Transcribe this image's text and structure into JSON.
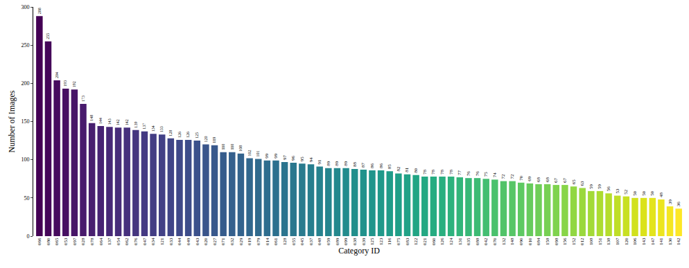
{
  "chart_data": {
    "type": "bar",
    "x_label": "Category ID",
    "y_label": "Number of Images",
    "categories": [
      "066",
      "080",
      "065",
      "053",
      "097",
      "028",
      "078",
      "064",
      "137",
      "054",
      "062",
      "076",
      "047",
      "034",
      "121",
      "033",
      "044",
      "049",
      "043",
      "020",
      "027",
      "071",
      "032",
      "029",
      "019",
      "079",
      "014",
      "061",
      "128",
      "055",
      "045",
      "037",
      "048",
      "059",
      "089",
      "099",
      "038",
      "039",
      "125",
      "123",
      "116",
      "075",
      "083",
      "122",
      "021",
      "060",
      "126",
      "124",
      "131",
      "035",
      "088",
      "042",
      "070",
      "132",
      "148",
      "090",
      "010",
      "084",
      "158",
      "098",
      "156",
      "152",
      "012",
      "108",
      "151",
      "138",
      "107",
      "120",
      "106",
      "143",
      "147",
      "141",
      "130",
      "142"
    ],
    "values": [
      288,
      255,
      204,
      193,
      192,
      173,
      148,
      144,
      143,
      142,
      142,
      139,
      137,
      134,
      133,
      128,
      126,
      126,
      125,
      120,
      119,
      110,
      110,
      108,
      102,
      101,
      99,
      99,
      97,
      96,
      95,
      94,
      91,
      89,
      89,
      89,
      88,
      87,
      86,
      86,
      85,
      82,
      81,
      80,
      78,
      78,
      78,
      78,
      77,
      76,
      76,
      75,
      74,
      72,
      72,
      70,
      69,
      68,
      68,
      67,
      67,
      65,
      63,
      59,
      59,
      56,
      53,
      52,
      50,
      50,
      50,
      48,
      39,
      36
    ],
    "color": "viridis",
    "ylim": [
      0,
      300
    ],
    "yticks": [
      0,
      50,
      100,
      150,
      200,
      250,
      300
    ],
    "grid": false,
    "data_labels": true
  }
}
